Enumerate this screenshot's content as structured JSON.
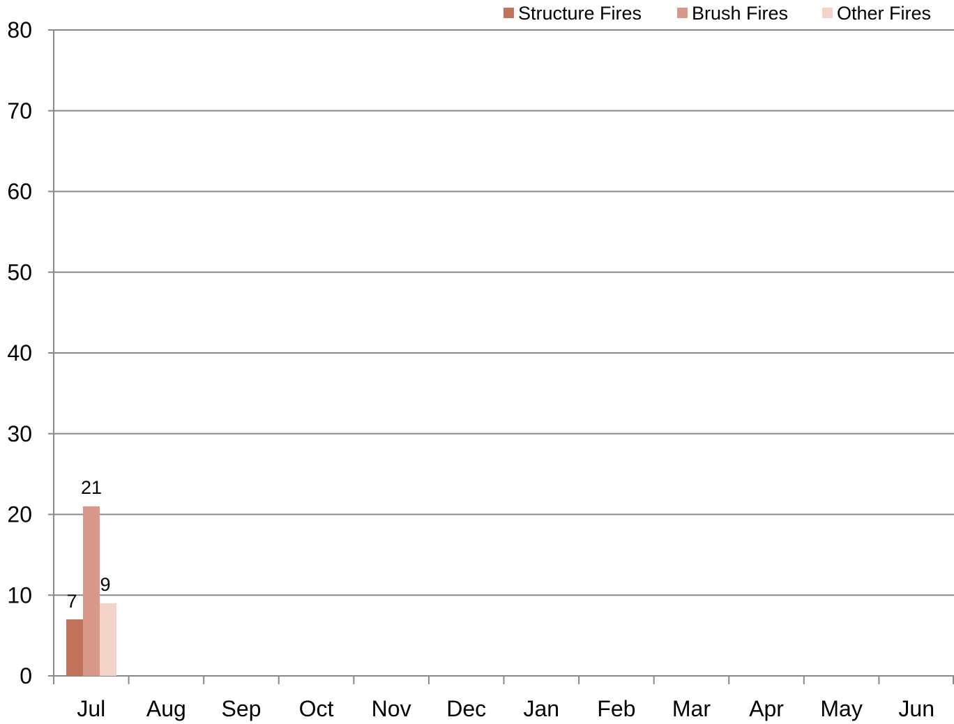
{
  "chart_data": {
    "type": "bar",
    "categories": [
      "Jul",
      "Aug",
      "Sep",
      "Oct",
      "Nov",
      "Dec",
      "Jan",
      "Feb",
      "Mar",
      "Apr",
      "May",
      "Jun"
    ],
    "series": [
      {
        "name": "Structure Fires",
        "values": [
          7,
          null,
          null,
          null,
          null,
          null,
          null,
          null,
          null,
          null,
          null,
          null
        ]
      },
      {
        "name": "Brush Fires",
        "values": [
          21,
          null,
          null,
          null,
          null,
          null,
          null,
          null,
          null,
          null,
          null,
          null
        ]
      },
      {
        "name": "Other Fires",
        "values": [
          9,
          null,
          null,
          null,
          null,
          null,
          null,
          null,
          null,
          null,
          null,
          null
        ]
      }
    ],
    "ylim": [
      0,
      80
    ],
    "yticks": [
      0,
      10,
      20,
      30,
      40,
      50,
      60,
      70,
      80
    ],
    "grid": true,
    "legend_position": "top-right",
    "data_labels": true
  },
  "colors": {
    "Structure Fires": "#c0735a",
    "Brush Fires": "#d9998a",
    "Other Fires": "#f2d3c8",
    "gridline": "#888888",
    "axis": "#888888"
  }
}
